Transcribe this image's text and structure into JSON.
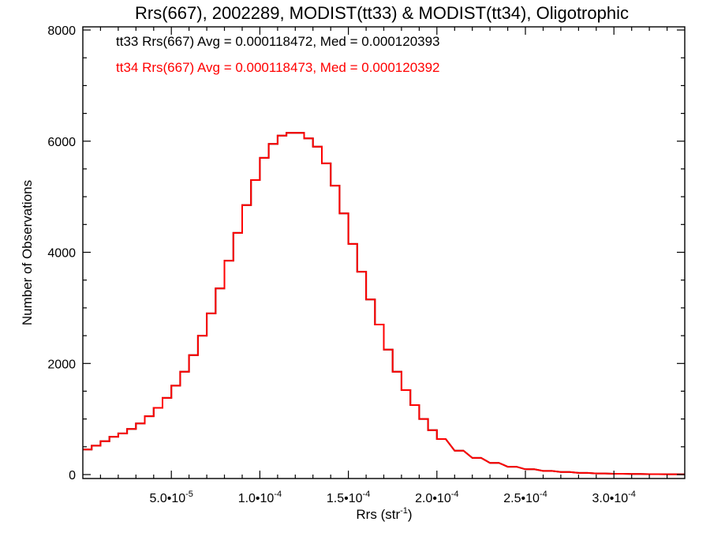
{
  "chart_data": {
    "type": "line",
    "step": true,
    "title": "Rrs(667), 2002289, MODIST(tt33) & MODIST(tt34), Oligotrophic",
    "xlabel": "Rrs (str",
    "xlabel_sup": "-1",
    "xlabel_close": ")",
    "ylabel": "Number of Observations",
    "xlim": [
      0.0,
      0.00034
    ],
    "ylim": [
      0,
      8000
    ],
    "grid": false,
    "x_ticks": [
      {
        "value": 5e-05,
        "mant": "5.0•10",
        "exp": "-5"
      },
      {
        "value": 0.0001,
        "mant": "1.0•10",
        "exp": "-4"
      },
      {
        "value": 0.00015,
        "mant": "1.5•10",
        "exp": "-4"
      },
      {
        "value": 0.0002,
        "mant": "2.0•10",
        "exp": "-4"
      },
      {
        "value": 0.00025,
        "mant": "2.5•10",
        "exp": "-4"
      },
      {
        "value": 0.0003,
        "mant": "3.0•10",
        "exp": "-4"
      }
    ],
    "y_ticks": [
      {
        "value": 0,
        "label": "0"
      },
      {
        "value": 2000,
        "label": "2000"
      },
      {
        "value": 4000,
        "label": "4000"
      },
      {
        "value": 6000,
        "label": "6000"
      },
      {
        "value": 8000,
        "label": "8000"
      }
    ],
    "annotations": [
      {
        "text": "tt33 Rrs(667) Avg = 0.000118472, Med = 0.000120393",
        "color": "#000000"
      },
      {
        "text": "tt34 Rrs(667) Avg = 0.000118473, Med = 0.000120392",
        "color": "#ff0000"
      }
    ],
    "series": [
      {
        "name": "tt33",
        "color": "#000000",
        "x": [
          0.0,
          5e-06,
          1e-05,
          1.5e-05,
          2e-05,
          2.5e-05,
          3e-05,
          3.5e-05,
          4e-05,
          4.5e-05,
          5e-05,
          5.5e-05,
          6e-05,
          6.5e-05,
          7e-05,
          7.5e-05,
          8e-05,
          8.5e-05,
          9e-05,
          9.5e-05,
          0.0001,
          0.000105,
          0.00011,
          0.000115,
          0.00012,
          0.000125,
          0.00013,
          0.000135,
          0.00014,
          0.000145,
          0.00015,
          0.000155,
          0.00016,
          0.000165,
          0.00017,
          0.000175,
          0.00018,
          0.000185,
          0.00019,
          0.000195,
          0.0002,
          0.00021,
          0.00022,
          0.00023,
          0.00024,
          0.00025,
          0.00026,
          0.00027,
          0.00028,
          0.00029,
          0.0003,
          0.00031,
          0.00032,
          0.00033,
          0.00034
        ],
        "y": [
          450,
          520,
          600,
          680,
          740,
          820,
          920,
          1050,
          1200,
          1380,
          1600,
          1850,
          2150,
          2500,
          2900,
          3350,
          3850,
          4350,
          4850,
          5300,
          5700,
          5950,
          6100,
          6150,
          6150,
          6050,
          5900,
          5600,
          5200,
          4700,
          4150,
          3650,
          3150,
          2700,
          2250,
          1850,
          1520,
          1250,
          1000,
          800,
          640,
          430,
          300,
          210,
          140,
          95,
          65,
          45,
          30,
          20,
          14,
          10,
          7,
          5,
          4
        ]
      },
      {
        "name": "tt34",
        "color": "#ff0000",
        "x": [
          0.0,
          5e-06,
          1e-05,
          1.5e-05,
          2e-05,
          2.5e-05,
          3e-05,
          3.5e-05,
          4e-05,
          4.5e-05,
          5e-05,
          5.5e-05,
          6e-05,
          6.5e-05,
          7e-05,
          7.5e-05,
          8e-05,
          8.5e-05,
          9e-05,
          9.5e-05,
          0.0001,
          0.000105,
          0.00011,
          0.000115,
          0.00012,
          0.000125,
          0.00013,
          0.000135,
          0.00014,
          0.000145,
          0.00015,
          0.000155,
          0.00016,
          0.000165,
          0.00017,
          0.000175,
          0.00018,
          0.000185,
          0.00019,
          0.000195,
          0.0002,
          0.00021,
          0.00022,
          0.00023,
          0.00024,
          0.00025,
          0.00026,
          0.00027,
          0.00028,
          0.00029,
          0.0003,
          0.00031,
          0.00032,
          0.00033,
          0.00034
        ],
        "y": [
          450,
          520,
          600,
          680,
          740,
          820,
          920,
          1050,
          1200,
          1380,
          1600,
          1850,
          2150,
          2500,
          2900,
          3350,
          3850,
          4350,
          4850,
          5300,
          5700,
          5950,
          6100,
          6150,
          6150,
          6050,
          5900,
          5600,
          5200,
          4700,
          4150,
          3650,
          3150,
          2700,
          2250,
          1850,
          1520,
          1250,
          1000,
          800,
          640,
          430,
          300,
          210,
          140,
          95,
          65,
          45,
          30,
          20,
          14,
          10,
          7,
          5,
          4
        ]
      }
    ]
  }
}
